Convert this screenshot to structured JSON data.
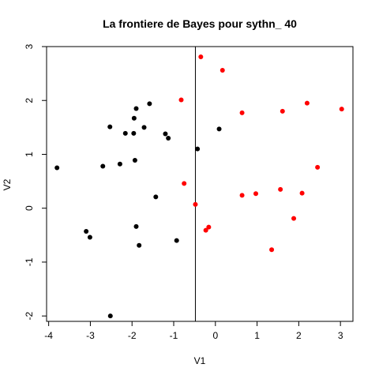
{
  "chart_data": {
    "type": "scatter",
    "title": "La frontiere de Bayes pour sythn_ 40",
    "xlabel": "V1",
    "ylabel": "V2",
    "xlim": [
      -4.05,
      3.3
    ],
    "ylim": [
      -2.1,
      3.0
    ],
    "xticks": [
      -4,
      -3,
      -2,
      -1,
      0,
      1,
      2,
      3
    ],
    "yticks": [
      -2,
      -1,
      0,
      1,
      2,
      3
    ],
    "grid": false,
    "boundary": {
      "type": "vertical-line",
      "x": -0.48
    },
    "series": [
      {
        "color": "#000000",
        "points": [
          {
            "x": -3.8,
            "y": 0.75
          },
          {
            "x": -3.1,
            "y": -0.43
          },
          {
            "x": -3.01,
            "y": -0.54
          },
          {
            "x": -2.7,
            "y": 0.78
          },
          {
            "x": -2.53,
            "y": 1.51
          },
          {
            "x": -2.29,
            "y": 0.82
          },
          {
            "x": -2.16,
            "y": 1.39
          },
          {
            "x": -1.96,
            "y": 1.39
          },
          {
            "x": -1.95,
            "y": 1.67
          },
          {
            "x": -1.93,
            "y": 0.89
          },
          {
            "x": -1.9,
            "y": 1.85
          },
          {
            "x": -1.9,
            "y": -0.34
          },
          {
            "x": -1.83,
            "y": -0.69
          },
          {
            "x": -1.71,
            "y": 1.5
          },
          {
            "x": -1.58,
            "y": 1.94
          },
          {
            "x": -1.43,
            "y": 0.21
          },
          {
            "x": -1.2,
            "y": 1.38
          },
          {
            "x": -1.13,
            "y": 1.3
          },
          {
            "x": -0.93,
            "y": -0.6
          },
          {
            "x": -0.43,
            "y": 1.1
          },
          {
            "x": 0.09,
            "y": 1.47
          },
          {
            "x": -2.52,
            "y": -2.0
          }
        ]
      },
      {
        "color": "#ff0000",
        "points": [
          {
            "x": -0.35,
            "y": 2.81
          },
          {
            "x": 0.17,
            "y": 2.56
          },
          {
            "x": -0.82,
            "y": 2.01
          },
          {
            "x": 0.64,
            "y": 1.77
          },
          {
            "x": 1.61,
            "y": 1.8
          },
          {
            "x": 2.2,
            "y": 1.95
          },
          {
            "x": 3.03,
            "y": 1.84
          },
          {
            "x": 2.45,
            "y": 0.76
          },
          {
            "x": -0.75,
            "y": 0.46
          },
          {
            "x": -0.48,
            "y": 0.07
          },
          {
            "x": 0.64,
            "y": 0.24
          },
          {
            "x": 0.97,
            "y": 0.27
          },
          {
            "x": 1.56,
            "y": 0.35
          },
          {
            "x": 2.08,
            "y": 0.28
          },
          {
            "x": 1.88,
            "y": -0.19
          },
          {
            "x": -0.16,
            "y": -0.35
          },
          {
            "x": -0.23,
            "y": -0.41
          },
          {
            "x": 1.35,
            "y": -0.77
          }
        ]
      }
    ]
  }
}
